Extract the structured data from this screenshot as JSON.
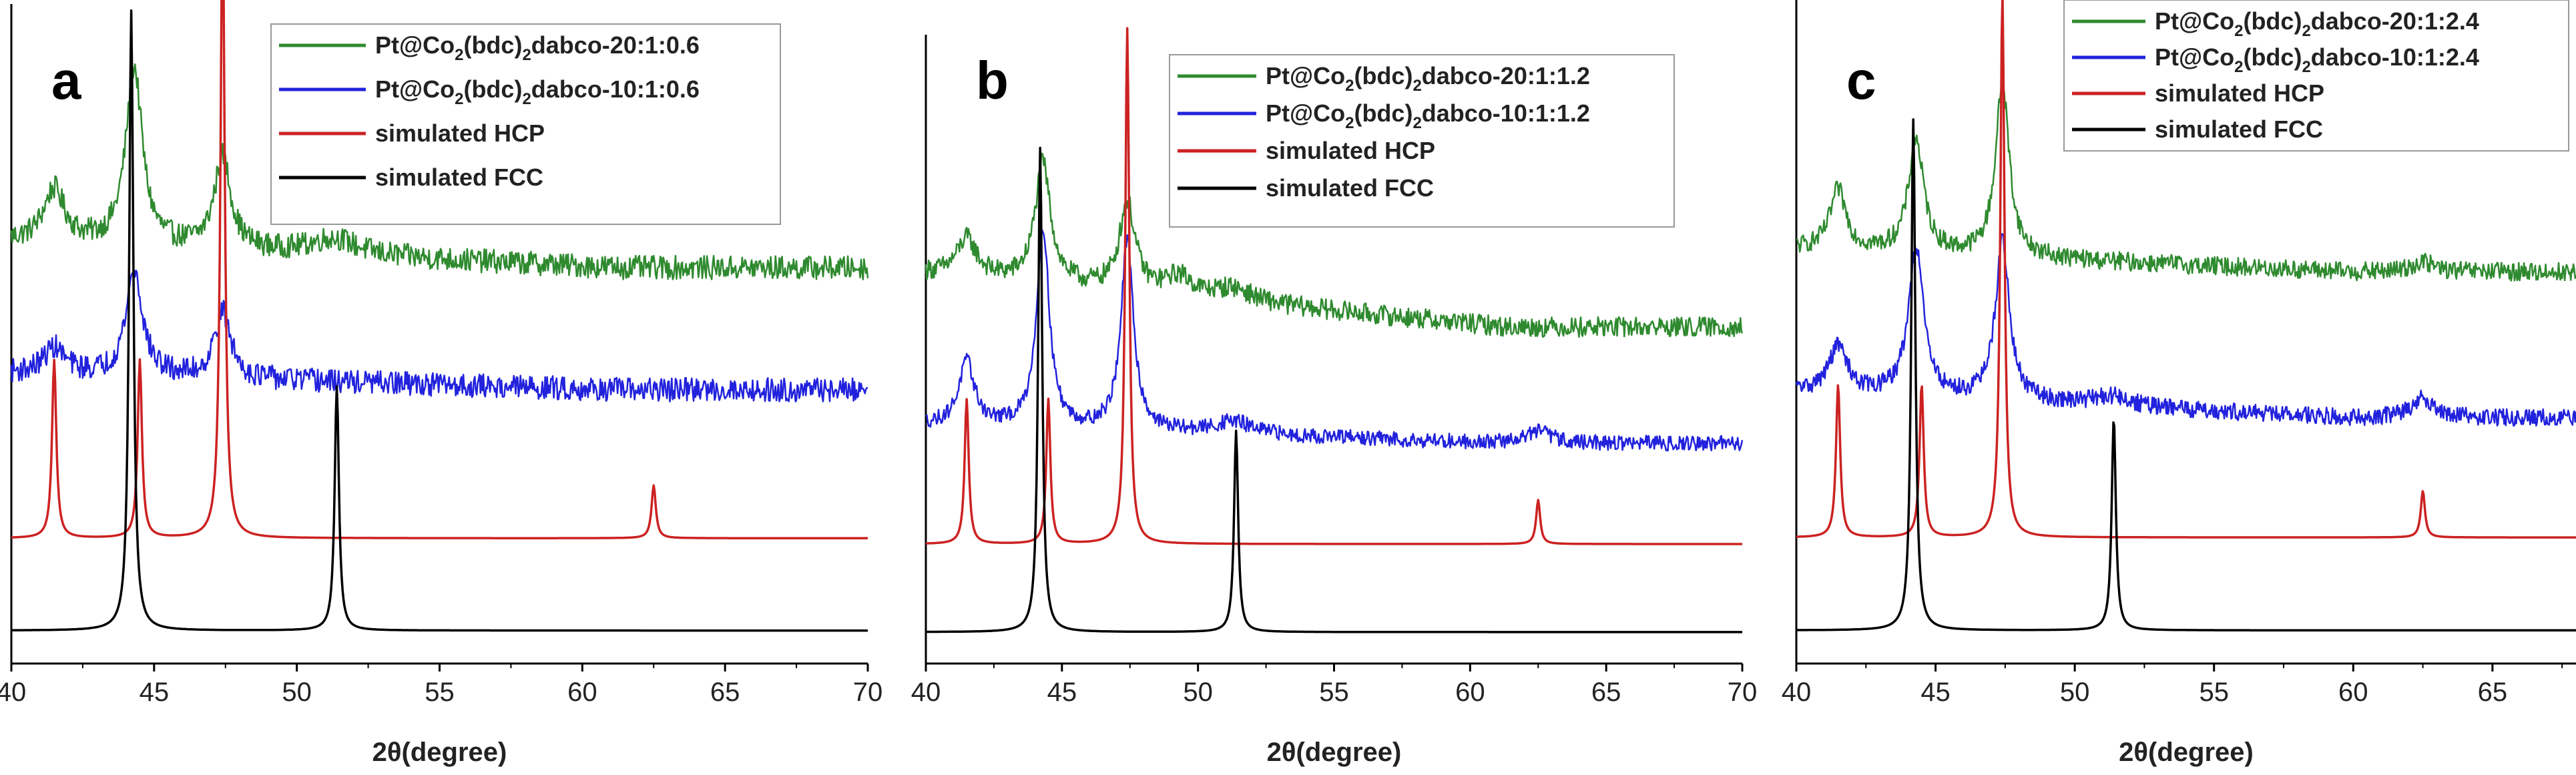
{
  "chart_data": [
    {
      "type": "line",
      "panel": "a",
      "xlabel": "2θ(degree)",
      "ylabel": "",
      "xlim": [
        40,
        70
      ],
      "xticks": [
        40,
        45,
        50,
        55,
        60,
        65,
        70
      ],
      "series": [
        {
          "name": "Pt@Co2(bdc)2dabco-20:1:0.6",
          "color": "#2f8a2f",
          "kind": "xrd",
          "baseline": 0.64,
          "tail": 0.6,
          "noise": 0.018,
          "peaks": [
            {
              "x": 41.5,
              "h": 0.08,
              "w": 0.45
            },
            {
              "x": 44.3,
              "h": 0.27,
              "w": 0.35
            },
            {
              "x": 47.4,
              "h": 0.14,
              "w": 0.35
            },
            {
              "x": 51.3,
              "h": 0.025,
              "w": 1.0
            }
          ]
        },
        {
          "name": "Pt@Co2(bdc)2dabco-10:1:0.6",
          "color": "#2222dd",
          "kind": "xrd",
          "baseline": 0.44,
          "tail": 0.415,
          "noise": 0.018,
          "peaks": [
            {
              "x": 41.5,
              "h": 0.04,
              "w": 0.45
            },
            {
              "x": 44.3,
              "h": 0.16,
              "w": 0.35
            },
            {
              "x": 47.4,
              "h": 0.1,
              "w": 0.35
            }
          ]
        },
        {
          "name": "simulated HCP",
          "color": "#cc2222",
          "kind": "sim",
          "baseline": 0.19,
          "peaks": [
            {
              "x": 41.5,
              "h": 0.27
            },
            {
              "x": 44.5,
              "h": 0.27
            },
            {
              "x": 47.4,
              "h": 0.96
            },
            {
              "x": 62.5,
              "h": 0.08
            }
          ]
        },
        {
          "name": "simulated FCC",
          "color": "#000000",
          "kind": "sim",
          "baseline": 0.05,
          "peaks": [
            {
              "x": 44.2,
              "h": 0.94
            },
            {
              "x": 51.4,
              "h": 0.37
            }
          ]
        }
      ]
    },
    {
      "type": "line",
      "panel": "b",
      "xlabel": "2θ(degree)",
      "ylabel": "",
      "xlim": [
        40,
        70
      ],
      "xticks": [
        40,
        45,
        50,
        55,
        60,
        65,
        70
      ],
      "series": [
        {
          "name": "Pt@Co2(bdc)2dabco-20:1:1.2",
          "color": "#2f8a2f",
          "kind": "xrd",
          "baseline": 0.62,
          "tail": 0.535,
          "noise": 0.016,
          "peaks": [
            {
              "x": 41.5,
              "h": 0.06,
              "w": 0.45
            },
            {
              "x": 44.3,
              "h": 0.19,
              "w": 0.35
            },
            {
              "x": 47.4,
              "h": 0.14,
              "w": 0.35
            },
            {
              "x": 49.3,
              "h": 0.03,
              "w": 0.6
            },
            {
              "x": 51.3,
              "h": 0.02,
              "w": 0.8
            }
          ]
        },
        {
          "name": "Pt@Co2(bdc)2dabco-10:1:1.2",
          "color": "#2222dd",
          "kind": "xrd",
          "baseline": 0.38,
          "tail": 0.35,
          "noise": 0.012,
          "peaks": [
            {
              "x": 41.5,
              "h": 0.1,
              "w": 0.35
            },
            {
              "x": 44.3,
              "h": 0.32,
              "w": 0.28
            },
            {
              "x": 47.4,
              "h": 0.3,
              "w": 0.28
            },
            {
              "x": 51.3,
              "h": 0.02,
              "w": 0.8
            },
            {
              "x": 62.5,
              "h": 0.02,
              "w": 0.6
            }
          ]
        },
        {
          "name": "simulated HCP",
          "color": "#cc2222",
          "kind": "sim",
          "baseline": 0.19,
          "peaks": [
            {
              "x": 41.5,
              "h": 0.23
            },
            {
              "x": 44.5,
              "h": 0.23
            },
            {
              "x": 47.4,
              "h": 0.82
            },
            {
              "x": 62.5,
              "h": 0.07
            }
          ]
        },
        {
          "name": "simulated FCC",
          "color": "#000000",
          "kind": "sim",
          "baseline": 0.05,
          "peaks": [
            {
              "x": 44.2,
              "h": 0.77
            },
            {
              "x": 51.4,
              "h": 0.32
            }
          ]
        }
      ]
    },
    {
      "type": "line",
      "panel": "c",
      "xlabel": "2θ(degree)",
      "ylabel": "",
      "xlim": [
        40,
        68
      ],
      "xticks": [
        40,
        45,
        50,
        55,
        60,
        65
      ],
      "series": [
        {
          "name": "Pt@Co2(bdc)2dabco-20:1:2.4",
          "color": "#2f8a2f",
          "kind": "xrd",
          "baseline": 0.625,
          "tail": 0.59,
          "noise": 0.014,
          "peaks": [
            {
              "x": 41.5,
              "h": 0.09,
              "w": 0.35
            },
            {
              "x": 44.3,
              "h": 0.17,
              "w": 0.33
            },
            {
              "x": 47.4,
              "h": 0.26,
              "w": 0.3
            },
            {
              "x": 62.5,
              "h": 0.015,
              "w": 0.5
            }
          ]
        },
        {
          "name": "Pt@Co2(bdc)2dabco-10:1:2.4",
          "color": "#2222dd",
          "kind": "xrd",
          "baseline": 0.41,
          "tail": 0.37,
          "noise": 0.013,
          "peaks": [
            {
              "x": 41.5,
              "h": 0.07,
              "w": 0.4
            },
            {
              "x": 44.3,
              "h": 0.22,
              "w": 0.33
            },
            {
              "x": 47.4,
              "h": 0.24,
              "w": 0.3
            },
            {
              "x": 51.3,
              "h": 0.015,
              "w": 0.8
            },
            {
              "x": 62.5,
              "h": 0.03,
              "w": 0.5
            }
          ]
        },
        {
          "name": "simulated HCP",
          "color": "#cc2222",
          "kind": "sim",
          "baseline": 0.19,
          "peaks": [
            {
              "x": 41.5,
              "h": 0.23
            },
            {
              "x": 44.5,
              "h": 0.23
            },
            {
              "x": 47.4,
              "h": 0.82
            },
            {
              "x": 62.5,
              "h": 0.07
            }
          ]
        },
        {
          "name": "simulated FCC",
          "color": "#000000",
          "kind": "sim",
          "baseline": 0.05,
          "peaks": [
            {
              "x": 44.2,
              "h": 0.77
            },
            {
              "x": 51.4,
              "h": 0.32
            }
          ]
        }
      ]
    }
  ],
  "legends": [
    [
      "Pt@Co|2|(bdc)|2|dabco-20:1:0.6",
      "Pt@Co|2|(bdc)|2|dabco-10:1:0.6",
      "simulated HCP",
      "simulated FCC"
    ],
    [
      "Pt@Co|2|(bdc)|2|dabco-20:1:1.2",
      "Pt@Co|2|(bdc)|2|dabco-10:1:1.2",
      "simulated HCP",
      "simulated FCC"
    ],
    [
      "Pt@Co|2|(bdc)|2|dabco-20:1:2.4",
      "Pt@Co|2|(bdc)|2|dabco-10:1:2.4",
      "simulated HCP",
      "simulated FCC"
    ]
  ]
}
